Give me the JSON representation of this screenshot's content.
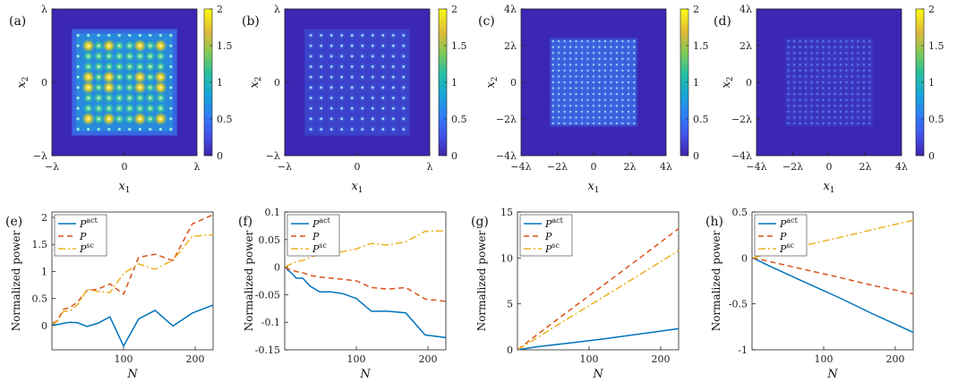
{
  "chart_data": [
    {
      "type": "heatmap",
      "panel_label": "(a)",
      "xlabel": "x1",
      "ylabel": "x2",
      "xticks": [
        "−λ",
        "0",
        "λ"
      ],
      "yticks": [
        "λ",
        "0",
        "−λ"
      ],
      "colorbar_ticks": [
        "2",
        "1.5",
        "1",
        "0.5",
        "0"
      ],
      "clim": [
        0,
        2
      ],
      "lattice": {
        "rows": 10,
        "cols": 10
      }
    },
    {
      "type": "heatmap",
      "panel_label": "(b)",
      "xlabel": "x1",
      "ylabel": "x2",
      "xticks": [
        "−λ",
        "0",
        "λ"
      ],
      "yticks": [
        "λ",
        "0",
        "−λ"
      ],
      "colorbar_ticks": [
        "2",
        "1.5",
        "1",
        "0.5",
        "0"
      ],
      "clim": [
        0,
        2
      ],
      "lattice": {
        "rows": 10,
        "cols": 10
      }
    },
    {
      "type": "heatmap",
      "panel_label": "(c)",
      "xlabel": "x1",
      "ylabel": "x2",
      "xticks": [
        "−4λ",
        "−2λ",
        "0",
        "2λ",
        "4λ"
      ],
      "yticks": [
        "4λ",
        "2λ",
        "0",
        "−2λ",
        "−4λ"
      ],
      "colorbar_ticks": [
        "2",
        "1.5",
        "1",
        "0.5",
        "0"
      ],
      "clim": [
        0,
        2
      ],
      "lattice": {
        "rows": 15,
        "cols": 15
      }
    },
    {
      "type": "heatmap",
      "panel_label": "(d)",
      "xlabel": "x1",
      "ylabel": "x2",
      "xticks": [
        "−4λ",
        "−2λ",
        "0",
        "2λ",
        "4λ"
      ],
      "yticks": [
        "4λ",
        "2λ",
        "0",
        "−2λ",
        "−4λ"
      ],
      "colorbar_ticks": [
        "2",
        "1.5",
        "1",
        "0.5",
        "0"
      ],
      "clim": [
        0,
        2
      ],
      "lattice": {
        "rows": 15,
        "cols": 15
      }
    },
    {
      "type": "line",
      "panel_label": "(e)",
      "xlabel": "N",
      "ylabel": "Normalized power",
      "xlim": [
        0,
        225
      ],
      "ylim": [
        -0.45,
        2.1
      ],
      "xticks": [
        100,
        200
      ],
      "yticks": [
        0,
        0.5,
        1,
        1.5,
        2
      ],
      "ytick_labels": [
        "0",
        "0.5",
        "1",
        "1.5",
        "2"
      ],
      "series": [
        {
          "name": "act",
          "color": "#0072BD",
          "dash": "solid",
          "x": [
            1,
            4,
            9,
            16,
            25,
            36,
            49,
            64,
            81,
            100,
            121,
            144,
            169,
            196,
            225
          ],
          "y": [
            0.02,
            0.01,
            0.02,
            0.04,
            0.06,
            0.05,
            -0.02,
            0.04,
            0.16,
            -0.38,
            0.12,
            0.28,
            -0.01,
            0.23,
            0.38
          ]
        },
        {
          "name": "P",
          "color": "#D95319",
          "dash": "6,4",
          "x": [
            1,
            4,
            9,
            16,
            25,
            36,
            49,
            64,
            81,
            100,
            121,
            144,
            169,
            196,
            225
          ],
          "y": [
            0.06,
            0.05,
            0.12,
            0.3,
            0.33,
            0.44,
            0.65,
            0.67,
            0.77,
            0.58,
            1.26,
            1.32,
            1.2,
            1.88,
            2.05
          ]
        },
        {
          "name": "sc",
          "color": "#EDB120",
          "dash": "8,3,2,3",
          "x": [
            1,
            4,
            9,
            16,
            25,
            36,
            49,
            64,
            81,
            100,
            121,
            144,
            169,
            196,
            225
          ],
          "y": [
            0.04,
            0.04,
            0.1,
            0.26,
            0.27,
            0.39,
            0.67,
            0.63,
            0.61,
            0.96,
            1.14,
            1.04,
            1.21,
            1.65,
            1.68
          ]
        }
      ],
      "legend": [
        {
          "base": "P",
          "sup": "act"
        },
        {
          "base": "P",
          "sup": ""
        },
        {
          "base": "P",
          "sup": "sc"
        }
      ],
      "legend_loc": "top-left"
    },
    {
      "type": "line",
      "panel_label": "(f)",
      "xlabel": "N",
      "ylabel": "Normalized power",
      "xlim": [
        0,
        225
      ],
      "ylim": [
        -0.15,
        0.1
      ],
      "xticks": [
        100,
        200
      ],
      "yticks": [
        -0.15,
        -0.1,
        -0.05,
        0,
        0.05,
        0.1
      ],
      "ytick_labels": [
        "-0.15",
        "-0.1",
        "-0.05",
        "0",
        "0.05",
        "0.1"
      ],
      "series": [
        {
          "name": "act",
          "color": "#0072BD",
          "dash": "solid",
          "x": [
            1,
            4,
            9,
            16,
            25,
            36,
            49,
            64,
            81,
            100,
            121,
            144,
            169,
            196,
            225
          ],
          "y": [
            0.0,
            -0.005,
            -0.01,
            -0.02,
            -0.02,
            -0.035,
            -0.045,
            -0.045,
            -0.048,
            -0.057,
            -0.08,
            -0.08,
            -0.083,
            -0.123,
            -0.128
          ]
        },
        {
          "name": "P",
          "color": "#D95319",
          "dash": "6,4",
          "x": [
            1,
            4,
            9,
            16,
            25,
            36,
            49,
            64,
            81,
            100,
            121,
            144,
            169,
            196,
            225
          ],
          "y": [
            0.0,
            -0.003,
            -0.005,
            -0.008,
            -0.01,
            -0.015,
            -0.018,
            -0.02,
            -0.022,
            -0.025,
            -0.037,
            -0.04,
            -0.037,
            -0.058,
            -0.062
          ]
        },
        {
          "name": "sc",
          "color": "#EDB120",
          "dash": "8,3,2,3",
          "x": [
            1,
            4,
            9,
            16,
            25,
            36,
            49,
            64,
            81,
            100,
            121,
            144,
            169,
            196,
            225
          ],
          "y": [
            0.0,
            0.003,
            0.006,
            0.01,
            0.012,
            0.018,
            0.024,
            0.027,
            0.028,
            0.033,
            0.043,
            0.04,
            0.046,
            0.065,
            0.066
          ]
        }
      ],
      "legend": [
        {
          "base": "P",
          "sup": "act"
        },
        {
          "base": "P",
          "sup": ""
        },
        {
          "base": "P",
          "sup": "sc"
        }
      ],
      "legend_loc": "top-left"
    },
    {
      "type": "line",
      "panel_label": "(g)",
      "xlabel": "N",
      "ylabel": "Normalized power",
      "xlim": [
        0,
        225
      ],
      "ylim": [
        0,
        15
      ],
      "xticks": [
        100,
        200
      ],
      "yticks": [
        0,
        5,
        10,
        15
      ],
      "ytick_labels": [
        "0",
        "5",
        "10",
        "15"
      ],
      "series": [
        {
          "name": "act",
          "color": "#0072BD",
          "dash": "solid",
          "x": [
            1,
            25,
            64,
            121,
            169,
            225
          ],
          "y": [
            0.01,
            0.3,
            0.65,
            1.2,
            1.7,
            2.3
          ]
        },
        {
          "name": "P",
          "color": "#D95319",
          "dash": "6,4",
          "x": [
            1,
            25,
            64,
            121,
            169,
            225
          ],
          "y": [
            0.05,
            1.5,
            3.8,
            7.1,
            9.9,
            13.2
          ]
        },
        {
          "name": "sc",
          "color": "#EDB120",
          "dash": "8,3,2,3",
          "x": [
            1,
            25,
            64,
            121,
            169,
            225
          ],
          "y": [
            0.04,
            1.2,
            3.1,
            5.8,
            8.1,
            10.8
          ]
        }
      ],
      "legend": [
        {
          "base": "P",
          "sup": "act"
        },
        {
          "base": "P",
          "sup": ""
        },
        {
          "base": "P",
          "sup": "sc"
        }
      ],
      "legend_loc": "top-left"
    },
    {
      "type": "line",
      "panel_label": "(h)",
      "xlabel": "N",
      "ylabel": "Normalized power",
      "xlim": [
        0,
        225
      ],
      "ylim": [
        -1,
        0.5
      ],
      "xticks": [
        100,
        200
      ],
      "yticks": [
        -1,
        -0.5,
        0,
        0.5
      ],
      "ytick_labels": [
        "-1",
        "-0.5",
        "0",
        "0.5"
      ],
      "series": [
        {
          "name": "act",
          "color": "#0072BD",
          "dash": "solid",
          "x": [
            1,
            25,
            64,
            121,
            169,
            225
          ],
          "y": [
            0.0,
            -0.09,
            -0.23,
            -0.43,
            -0.61,
            -0.81
          ]
        },
        {
          "name": "P",
          "color": "#D95319",
          "dash": "6,4",
          "x": [
            1,
            25,
            64,
            121,
            169,
            225
          ],
          "y": [
            0.0,
            -0.04,
            -0.11,
            -0.21,
            -0.3,
            -0.39
          ]
        },
        {
          "name": "sc",
          "color": "#EDB120",
          "dash": "8,3,2,3",
          "x": [
            1,
            25,
            64,
            121,
            169,
            225
          ],
          "y": [
            0.0,
            0.05,
            0.12,
            0.22,
            0.31,
            0.41
          ]
        }
      ],
      "legend": [
        {
          "base": "P",
          "sup": "act"
        },
        {
          "base": "P",
          "sup": ""
        },
        {
          "base": "P",
          "sup": "sc"
        }
      ],
      "legend_loc": "top-left"
    }
  ]
}
